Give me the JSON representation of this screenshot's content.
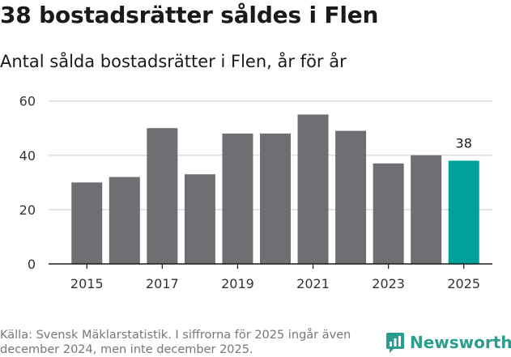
{
  "header": {
    "title": "38 bostadsrätter såldes i Flen",
    "subtitle": "Antal sålda bostadsrätter i Flen, år för år"
  },
  "footer": {
    "source": "Källa: Svensk Mäklarstatistik. I siffrorna för 2025 ingår även december 2024, men inte december 2025.",
    "brand": "Newsworthy"
  },
  "colors": {
    "bar": "#6f6e73",
    "highlight": "#00a19a",
    "grid": "#dcdcdc",
    "axis": "#1a1a1a",
    "brand": "#2a9d8f"
  },
  "chart_data": {
    "type": "bar",
    "title": "38 bostadsrätter såldes i Flen",
    "subtitle": "Antal sålda bostadsrätter i Flen, år för år",
    "xlabel": "",
    "ylabel": "",
    "categories": [
      "2015",
      "2016",
      "2017",
      "2018",
      "2019",
      "2020",
      "2021",
      "2022",
      "2023",
      "2024",
      "2025"
    ],
    "values": [
      30,
      32,
      50,
      33,
      48,
      48,
      55,
      49,
      37,
      40,
      38
    ],
    "x_tick_labels": [
      "2015",
      "2017",
      "2019",
      "2021",
      "2023",
      "2025"
    ],
    "y_ticks": [
      0,
      20,
      40,
      60
    ],
    "ylim": [
      0,
      62
    ],
    "highlight_category": "2025",
    "data_labels": [
      {
        "category": "2025",
        "text": "38"
      }
    ],
    "grid": true
  }
}
